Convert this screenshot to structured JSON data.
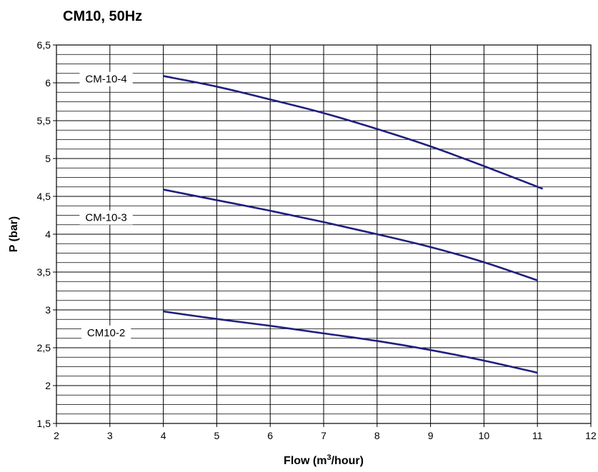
{
  "chart_data": {
    "type": "line",
    "title": "CM10, 50Hz",
    "xlabel": "Flow (m³/hour)",
    "xlabel_parts": {
      "before": "Flow (m",
      "sup": "3",
      "after": "/hour)"
    },
    "ylabel": "P (bar)",
    "xlim": [
      2,
      12
    ],
    "ylim": [
      1.5,
      6.5
    ],
    "x_ticks": [
      2,
      3,
      4,
      5,
      6,
      7,
      8,
      9,
      10,
      11,
      12
    ],
    "y_ticks": [
      1.5,
      2,
      2.5,
      3,
      3.5,
      4,
      4.5,
      5,
      5.5,
      6,
      6.5
    ],
    "x_tick_labels": [
      "2",
      "3",
      "4",
      "5",
      "6",
      "7",
      "8",
      "9",
      "10",
      "11",
      "12"
    ],
    "y_tick_labels": [
      "1,5",
      "2",
      "2,5",
      "3",
      "3,5",
      "4",
      "4,5",
      "5",
      "5,5",
      "6",
      "6,5"
    ],
    "y_minor_step": 0.125,
    "grid": true,
    "series": [
      {
        "name": "CM-10-4",
        "color": "#1f1f7f",
        "x": [
          4,
          5,
          6,
          7,
          8,
          9,
          10,
          11.1
        ],
        "y": [
          6.09,
          5.95,
          5.78,
          5.6,
          5.39,
          5.16,
          4.9,
          4.6
        ]
      },
      {
        "name": "CM-10-3",
        "color": "#1f1f7f",
        "x": [
          4,
          5,
          6,
          7,
          8,
          9,
          10,
          11
        ],
        "y": [
          4.59,
          4.45,
          4.31,
          4.16,
          4.0,
          3.83,
          3.63,
          3.39
        ]
      },
      {
        "name": "CM10-2",
        "color": "#1f1f7f",
        "x": [
          4,
          5,
          6,
          7,
          8,
          9,
          10,
          11
        ],
        "y": [
          2.98,
          2.88,
          2.79,
          2.69,
          2.59,
          2.47,
          2.33,
          2.17
        ]
      }
    ]
  }
}
